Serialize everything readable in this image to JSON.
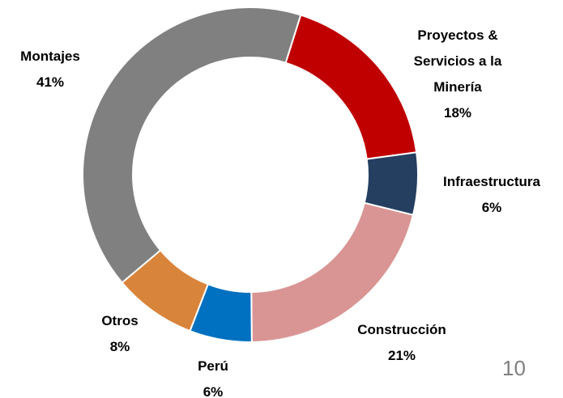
{
  "chart_data": {
    "type": "donut",
    "categories": [
      "Proyectos & Servicios a la Minería",
      "Infraestructura",
      "Construcción",
      "Perú",
      "Otros",
      "Montajes"
    ],
    "values": [
      18,
      6,
      21,
      6,
      8,
      41
    ],
    "value_labels": [
      "18%",
      "6%",
      "21%",
      "6%",
      "8%",
      "41%"
    ],
    "colors": [
      "#c00000",
      "#243f60",
      "#d99594",
      "#0070c0",
      "#d9843b",
      "#808080"
    ]
  },
  "page_number": "10"
}
